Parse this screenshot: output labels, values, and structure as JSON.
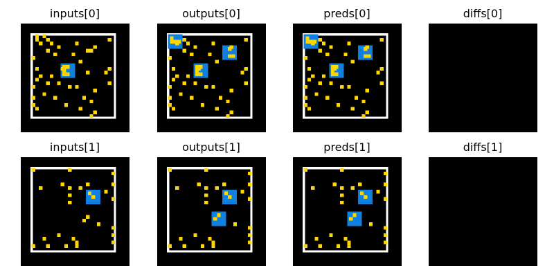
{
  "colors": {
    "background": "#000000",
    "border": "#ffffff",
    "dot": "#ffd700",
    "block": "#0f7fe0"
  },
  "grid_size": 30,
  "panels": [
    {
      "title": "inputs[0]",
      "frame": true,
      "blocks": [
        [
          11,
          11
        ]
      ],
      "block_patterns": [
        [
          [
            0,
            0
          ],
          [
            1,
            0
          ],
          [
            0,
            1
          ],
          [
            0,
            2
          ],
          [
            1,
            2
          ]
        ]
      ],
      "dots": [
        [
          6,
          3
        ],
        [
          7,
          4
        ],
        [
          5,
          5
        ],
        [
          8,
          5
        ],
        [
          7,
          7
        ],
        [
          15,
          5
        ],
        [
          10,
          6
        ],
        [
          18,
          7
        ],
        [
          19,
          7
        ],
        [
          9,
          8
        ],
        [
          14,
          8
        ],
        [
          20,
          6
        ],
        [
          24,
          4
        ],
        [
          3,
          9
        ],
        [
          16,
          10
        ],
        [
          4,
          12
        ],
        [
          11,
          12
        ],
        [
          18,
          13
        ],
        [
          24,
          12
        ],
        [
          5,
          14
        ],
        [
          8,
          14
        ],
        [
          23,
          13
        ],
        [
          4,
          15
        ],
        [
          7,
          16
        ],
        [
          10,
          16
        ],
        [
          24,
          16
        ],
        [
          3,
          17
        ],
        [
          13,
          17
        ],
        [
          15,
          17
        ],
        [
          20,
          18
        ],
        [
          6,
          19
        ],
        [
          3,
          20
        ],
        [
          9,
          20
        ],
        [
          17,
          20
        ],
        [
          19,
          21
        ],
        [
          3,
          22
        ],
        [
          12,
          22
        ],
        [
          4,
          23
        ],
        [
          16,
          23
        ],
        [
          20,
          24
        ],
        [
          19,
          25
        ],
        [
          4,
          3
        ],
        [
          4,
          4
        ]
      ]
    },
    {
      "title": "outputs[0]",
      "frame": true,
      "blocks": [
        [
          3,
          3
        ],
        [
          18,
          6
        ],
        [
          10,
          11
        ]
      ],
      "block_patterns": [
        [
          [
            0,
            0
          ],
          [
            0,
            1
          ],
          [
            1,
            1
          ],
          [
            2,
            1
          ]
        ],
        [
          [
            1,
            0
          ],
          [
            1,
            2
          ],
          [
            2,
            2
          ]
        ],
        [
          [
            0,
            0
          ],
          [
            1,
            0
          ],
          [
            0,
            1
          ],
          [
            0,
            2
          ],
          [
            1,
            2
          ]
        ]
      ],
      "dots": [
        [
          7,
          4
        ],
        [
          5,
          5
        ],
        [
          8,
          5
        ],
        [
          7,
          7
        ],
        [
          15,
          5
        ],
        [
          10,
          6
        ],
        [
          9,
          8
        ],
        [
          14,
          8
        ],
        [
          20,
          6
        ],
        [
          24,
          4
        ],
        [
          3,
          9
        ],
        [
          16,
          10
        ],
        [
          4,
          12
        ],
        [
          11,
          12
        ],
        [
          24,
          12
        ],
        [
          5,
          14
        ],
        [
          8,
          14
        ],
        [
          23,
          13
        ],
        [
          4,
          15
        ],
        [
          7,
          16
        ],
        [
          10,
          16
        ],
        [
          24,
          16
        ],
        [
          3,
          17
        ],
        [
          13,
          17
        ],
        [
          15,
          17
        ],
        [
          20,
          18
        ],
        [
          6,
          19
        ],
        [
          3,
          20
        ],
        [
          9,
          20
        ],
        [
          17,
          20
        ],
        [
          19,
          21
        ],
        [
          3,
          22
        ],
        [
          12,
          22
        ],
        [
          4,
          23
        ],
        [
          16,
          23
        ],
        [
          20,
          24
        ],
        [
          19,
          25
        ]
      ]
    },
    {
      "title": "preds[0]",
      "frame": true,
      "blocks": [
        [
          3,
          3
        ],
        [
          18,
          6
        ],
        [
          10,
          11
        ]
      ],
      "block_patterns": [
        [
          [
            0,
            0
          ],
          [
            0,
            1
          ],
          [
            1,
            1
          ],
          [
            2,
            1
          ]
        ],
        [
          [
            1,
            0
          ],
          [
            1,
            2
          ],
          [
            2,
            2
          ]
        ],
        [
          [
            0,
            0
          ],
          [
            1,
            0
          ],
          [
            0,
            1
          ],
          [
            0,
            2
          ],
          [
            1,
            2
          ]
        ]
      ],
      "dots": [
        [
          7,
          4
        ],
        [
          5,
          5
        ],
        [
          8,
          5
        ],
        [
          7,
          7
        ],
        [
          15,
          5
        ],
        [
          10,
          6
        ],
        [
          9,
          8
        ],
        [
          14,
          8
        ],
        [
          20,
          6
        ],
        [
          24,
          4
        ],
        [
          3,
          9
        ],
        [
          16,
          10
        ],
        [
          4,
          12
        ],
        [
          11,
          12
        ],
        [
          24,
          12
        ],
        [
          5,
          14
        ],
        [
          8,
          14
        ],
        [
          23,
          13
        ],
        [
          4,
          15
        ],
        [
          7,
          16
        ],
        [
          10,
          16
        ],
        [
          24,
          16
        ],
        [
          3,
          17
        ],
        [
          13,
          17
        ],
        [
          15,
          17
        ],
        [
          20,
          18
        ],
        [
          6,
          19
        ],
        [
          3,
          20
        ],
        [
          9,
          20
        ],
        [
          17,
          20
        ],
        [
          19,
          21
        ],
        [
          3,
          22
        ],
        [
          12,
          22
        ],
        [
          4,
          23
        ],
        [
          16,
          23
        ],
        [
          20,
          24
        ],
        [
          19,
          25
        ]
      ]
    },
    {
      "title": "diffs[0]",
      "frame": false,
      "blocks": [],
      "block_patterns": [],
      "dots": []
    },
    {
      "title": "inputs[1]",
      "frame": true,
      "blocks": [
        [
          18,
          9
        ]
      ],
      "block_patterns": [
        [
          [
            0,
            0
          ],
          [
            1,
            1
          ]
        ]
      ],
      "dots": [
        [
          3,
          3
        ],
        [
          13,
          3
        ],
        [
          25,
          4
        ],
        [
          11,
          7
        ],
        [
          18,
          7
        ],
        [
          25,
          7
        ],
        [
          5,
          8
        ],
        [
          13,
          8
        ],
        [
          16,
          8
        ],
        [
          23,
          9
        ],
        [
          13,
          10
        ],
        [
          13,
          12
        ],
        [
          25,
          11
        ],
        [
          18,
          16
        ],
        [
          17,
          17
        ],
        [
          21,
          18
        ],
        [
          25,
          19
        ],
        [
          10,
          21
        ],
        [
          25,
          21
        ],
        [
          6,
          22
        ],
        [
          14,
          22
        ],
        [
          25,
          23
        ],
        [
          3,
          24
        ],
        [
          7,
          24
        ],
        [
          12,
          24
        ],
        [
          15,
          23
        ],
        [
          15,
          24
        ]
      ]
    },
    {
      "title": "outputs[1]",
      "frame": true,
      "blocks": [
        [
          18,
          9
        ],
        [
          15,
          15
        ]
      ],
      "block_patterns": [
        [
          [
            0,
            0
          ],
          [
            1,
            1
          ]
        ],
        [
          [
            1,
            0
          ],
          [
            0,
            1
          ]
        ]
      ],
      "dots": [
        [
          3,
          3
        ],
        [
          13,
          3
        ],
        [
          25,
          4
        ],
        [
          11,
          7
        ],
        [
          18,
          7
        ],
        [
          25,
          7
        ],
        [
          5,
          8
        ],
        [
          13,
          8
        ],
        [
          16,
          8
        ],
        [
          23,
          9
        ],
        [
          13,
          10
        ],
        [
          13,
          12
        ],
        [
          25,
          11
        ],
        [
          21,
          18
        ],
        [
          25,
          19
        ],
        [
          10,
          21
        ],
        [
          25,
          21
        ],
        [
          6,
          22
        ],
        [
          14,
          22
        ],
        [
          25,
          23
        ],
        [
          3,
          24
        ],
        [
          7,
          24
        ],
        [
          12,
          24
        ],
        [
          15,
          23
        ],
        [
          15,
          24
        ]
      ]
    },
    {
      "title": "preds[1]",
      "frame": true,
      "blocks": [
        [
          18,
          9
        ],
        [
          15,
          15
        ]
      ],
      "block_patterns": [
        [
          [
            0,
            0
          ],
          [
            1,
            1
          ]
        ],
        [
          [
            1,
            0
          ],
          [
            0,
            1
          ]
        ]
      ],
      "dots": [
        [
          3,
          3
        ],
        [
          13,
          3
        ],
        [
          25,
          4
        ],
        [
          11,
          7
        ],
        [
          18,
          7
        ],
        [
          25,
          7
        ],
        [
          5,
          8
        ],
        [
          13,
          8
        ],
        [
          16,
          8
        ],
        [
          23,
          9
        ],
        [
          13,
          10
        ],
        [
          13,
          12
        ],
        [
          25,
          11
        ],
        [
          21,
          18
        ],
        [
          25,
          19
        ],
        [
          10,
          21
        ],
        [
          25,
          21
        ],
        [
          6,
          22
        ],
        [
          14,
          22
        ],
        [
          25,
          23
        ],
        [
          3,
          24
        ],
        [
          7,
          24
        ],
        [
          12,
          24
        ],
        [
          15,
          23
        ],
        [
          15,
          24
        ]
      ]
    },
    {
      "title": "diffs[1]",
      "frame": false,
      "blocks": [],
      "block_patterns": [],
      "dots": []
    }
  ]
}
